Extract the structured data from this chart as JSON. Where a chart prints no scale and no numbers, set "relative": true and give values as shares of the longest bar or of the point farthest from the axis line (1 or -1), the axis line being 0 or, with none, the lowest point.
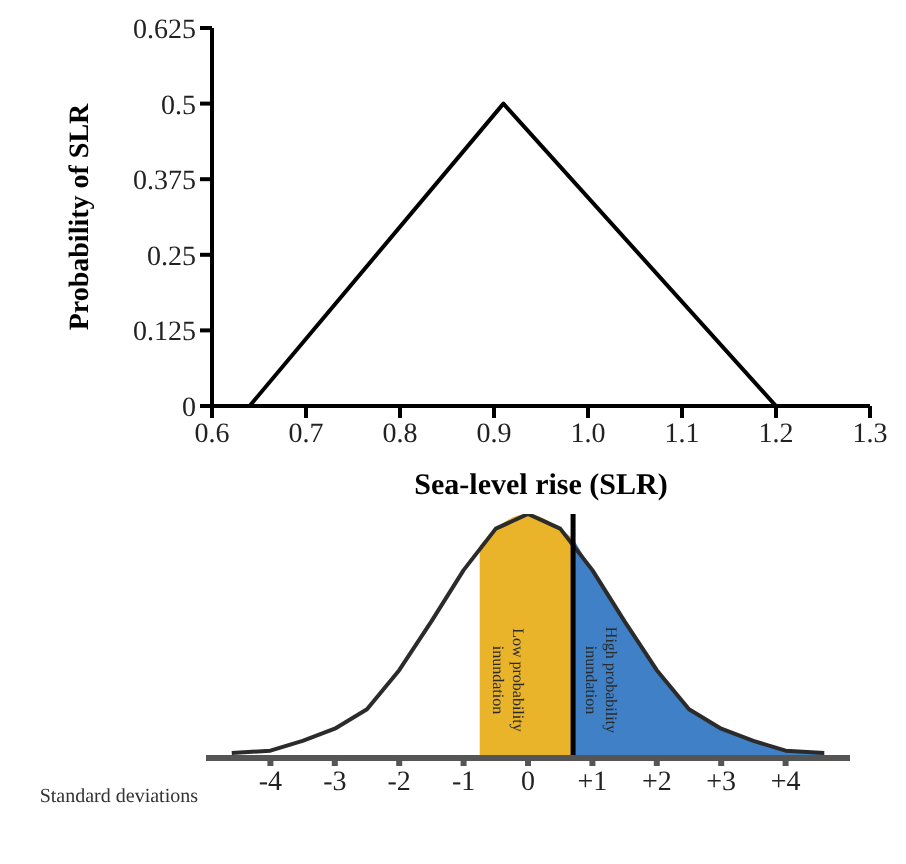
{
  "chart_data": [
    {
      "type": "line",
      "xlabel": "Sea-level rise (SLR)",
      "ylabel": "Probability of SLR",
      "x": [
        0.64,
        0.91,
        1.2
      ],
      "series": [
        {
          "color": "#000000",
          "values": [
            0,
            0.5,
            0
          ]
        }
      ],
      "xlim": [
        0.6,
        1.3
      ],
      "xticks": [
        0.6,
        0.7,
        0.8,
        0.9,
        {
          "value": 1,
          "label": "1.0"
        },
        1.1,
        1.2,
        1.3
      ],
      "ylim": [
        0,
        0.625
      ],
      "yticks": [
        0,
        0.125,
        0.25,
        0.375,
        0.5,
        0.625
      ],
      "line_style": "solid"
    },
    {
      "type": "line",
      "xlabel": "Standard deviations",
      "relative": true,
      "series": [
        {
          "type": "area",
          "color": "#e9b42a",
          "x": [
            -0.75,
            -0.5,
            0,
            0.5,
            0.7
          ],
          "values": [
            0.87,
            0.94,
            1,
            0.94,
            0.9
          ]
        },
        {
          "type": "area",
          "color": "#3f80c6",
          "x": [
            0.7,
            1,
            1.5,
            2,
            2.5,
            3,
            3.5,
            4,
            4.6
          ],
          "values": [
            0.9,
            0.77,
            0.56,
            0.36,
            0.2,
            0.12,
            0.07,
            0.03,
            0.02
          ]
        },
        {
          "color": "#2b2b2b",
          "x": [
            -4.6,
            -4,
            -3.5,
            -3,
            -2.5,
            -2,
            -1.5,
            -1,
            -0.5,
            0,
            0.5,
            1,
            1.5,
            2,
            2.5,
            3,
            3.5,
            4,
            4.6
          ],
          "values": [
            0.02,
            0.03,
            0.07,
            0.12,
            0.2,
            0.36,
            0.56,
            0.77,
            0.94,
            1,
            0.94,
            0.77,
            0.56,
            0.36,
            0.2,
            0.12,
            0.07,
            0.03,
            0.02
          ]
        }
      ],
      "xlim": [
        -5,
        5
      ],
      "xticks": [
        -4,
        -3,
        -2,
        -1,
        0,
        {
          "value": 1,
          "label": "+1"
        },
        {
          "value": 2,
          "label": "+2"
        },
        {
          "value": 3,
          "label": "+3"
        },
        {
          "value": 4,
          "label": "+4"
        }
      ],
      "ref_lines": [
        {
          "axis": "x",
          "value": 0.7,
          "color": "#000000"
        }
      ],
      "annotations": [
        "Low probability inundation",
        "High probability inundation"
      ],
      "line_style": "solid"
    }
  ]
}
